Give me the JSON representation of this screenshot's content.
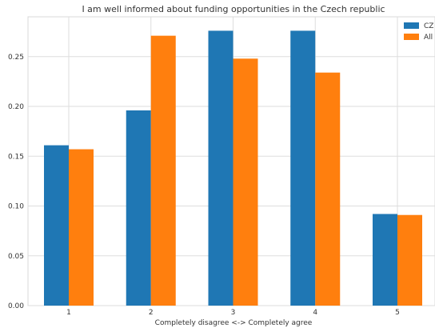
{
  "chart_data": {
    "type": "bar",
    "title": "I am well informed about funding opportunities in the Czech republic",
    "xlabel": "Completely disagree <-> Completely agree",
    "ylabel": "",
    "categories": [
      "1",
      "2",
      "3",
      "4",
      "5"
    ],
    "series": [
      {
        "name": "CZ",
        "color": "#1f77b4",
        "values": [
          0.161,
          0.196,
          0.276,
          0.276,
          0.092
        ]
      },
      {
        "name": "All",
        "color": "#ff7f0e",
        "values": [
          0.157,
          0.271,
          0.248,
          0.234,
          0.091
        ]
      }
    ],
    "ylim": [
      0,
      0.29
    ],
    "yticks": [
      "0.00",
      "0.05",
      "0.10",
      "0.15",
      "0.20",
      "0.25"
    ],
    "grid": true,
    "legend_position": "top-right"
  }
}
